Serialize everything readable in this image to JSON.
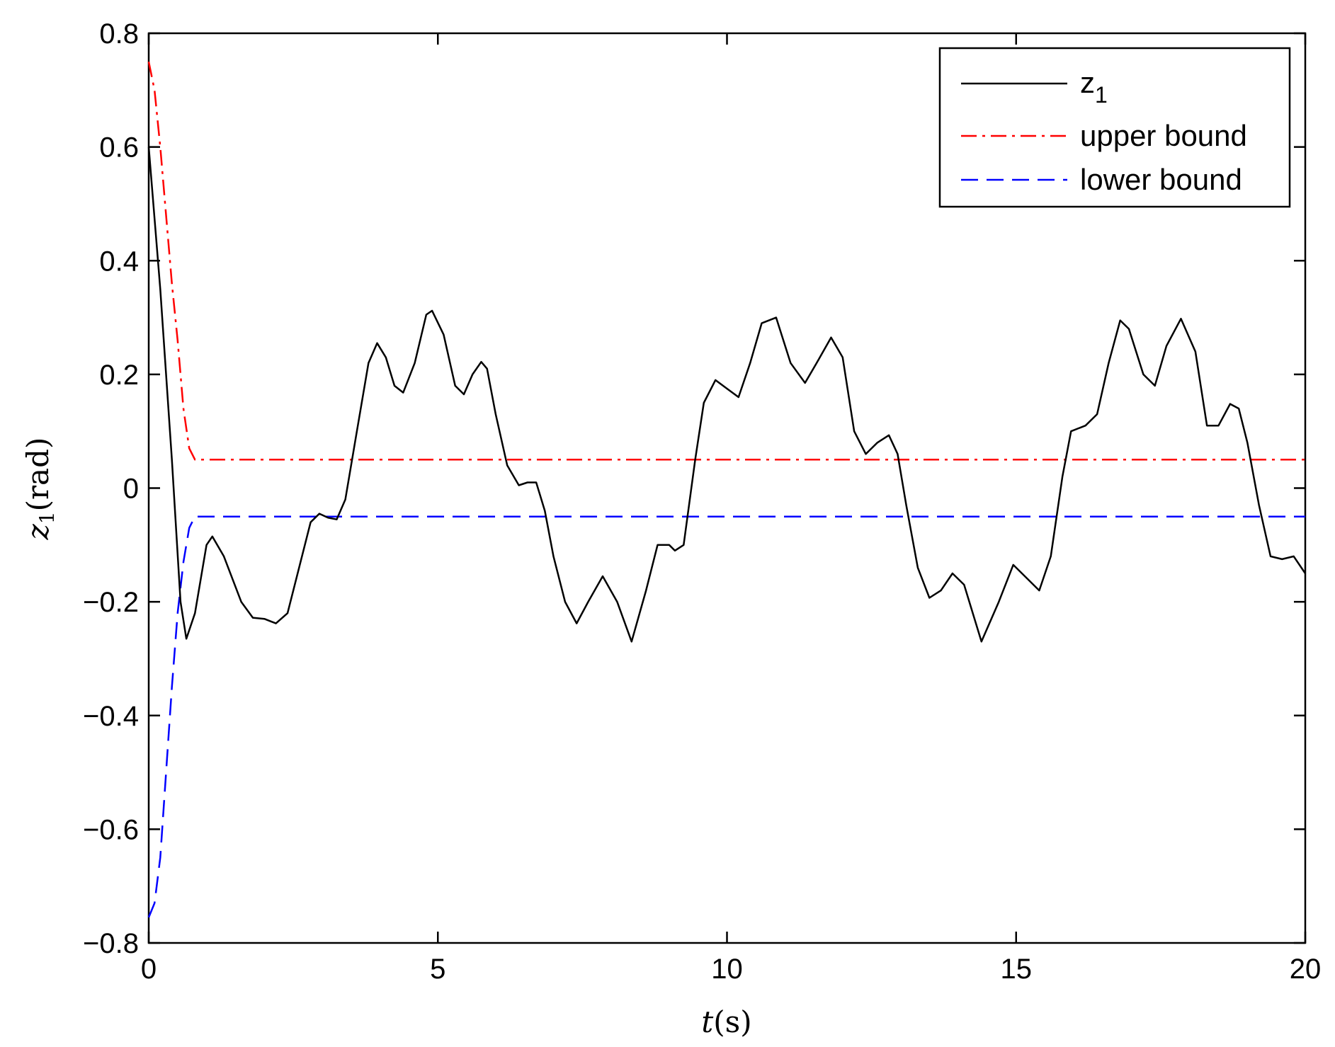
{
  "chart_data": {
    "type": "line",
    "title": "",
    "xlabel": {
      "var": "t",
      "unit": "(s)"
    },
    "ylabel": {
      "var": "z",
      "sub": "1",
      "unit": "(rad)"
    },
    "xlim": [
      0,
      20
    ],
    "ylim": [
      -0.8,
      0.8
    ],
    "xticks": [
      0,
      5,
      10,
      15,
      20
    ],
    "yticks": [
      -0.8,
      -0.6,
      -0.4,
      -0.2,
      0,
      0.2,
      0.4,
      0.6,
      0.8
    ],
    "xtick_labels": [
      "0",
      "5",
      "10",
      "15",
      "20"
    ],
    "ytick_labels": [
      "−0.8",
      "−0.6",
      "−0.4",
      "−0.2",
      "0",
      "0.2",
      "0.4",
      "0.6",
      "0.8"
    ],
    "grid": false,
    "legend_position": "top-right",
    "series": [
      {
        "name": "z",
        "name_sub": "1",
        "color": "#000000",
        "style": "solid",
        "x": [
          0,
          0.2,
          0.4,
          0.55,
          0.65,
          0.8,
          1.0,
          1.1,
          1.3,
          1.6,
          1.8,
          2.0,
          2.2,
          2.4,
          2.6,
          2.8,
          2.95,
          3.1,
          3.25,
          3.4,
          3.6,
          3.8,
          3.95,
          4.1,
          4.25,
          4.4,
          4.6,
          4.8,
          4.9,
          5.1,
          5.3,
          5.45,
          5.6,
          5.75,
          5.85,
          6.0,
          6.2,
          6.4,
          6.55,
          6.7,
          6.85,
          7.0,
          7.2,
          7.4,
          7.6,
          7.85,
          8.1,
          8.35,
          8.6,
          8.8,
          9.0,
          9.1,
          9.25,
          9.45,
          9.6,
          9.8,
          10.0,
          10.2,
          10.4,
          10.6,
          10.85,
          11.1,
          11.35,
          11.55,
          11.8,
          12.0,
          12.2,
          12.4,
          12.6,
          12.8,
          12.95,
          13.1,
          13.3,
          13.5,
          13.7,
          13.9,
          14.1,
          14.4,
          14.7,
          14.95,
          15.2,
          15.4,
          15.6,
          15.8,
          15.95,
          16.2,
          16.4,
          16.6,
          16.8,
          16.95,
          17.2,
          17.4,
          17.6,
          17.85,
          18.1,
          18.3,
          18.5,
          18.7,
          18.85,
          19.0,
          19.2,
          19.4,
          19.6,
          19.8,
          20.0
        ],
        "y": [
          0.6,
          0.35,
          0.05,
          -0.2,
          -0.265,
          -0.22,
          -0.1,
          -0.085,
          -0.12,
          -0.2,
          -0.228,
          -0.23,
          -0.238,
          -0.22,
          -0.14,
          -0.06,
          -0.045,
          -0.052,
          -0.055,
          -0.02,
          0.1,
          0.22,
          0.255,
          0.23,
          0.18,
          0.168,
          0.22,
          0.305,
          0.312,
          0.27,
          0.18,
          0.165,
          0.2,
          0.222,
          0.21,
          0.13,
          0.04,
          0.005,
          0.01,
          0.01,
          -0.04,
          -0.12,
          -0.2,
          -0.238,
          -0.2,
          -0.155,
          -0.2,
          -0.27,
          -0.18,
          -0.1,
          -0.1,
          -0.11,
          -0.1,
          0.05,
          0.15,
          0.19,
          0.175,
          0.16,
          0.22,
          0.29,
          0.3,
          0.22,
          0.185,
          0.22,
          0.265,
          0.23,
          0.1,
          0.06,
          0.08,
          0.093,
          0.06,
          -0.03,
          -0.14,
          -0.193,
          -0.18,
          -0.15,
          -0.17,
          -0.27,
          -0.2,
          -0.135,
          -0.16,
          -0.18,
          -0.12,
          0.02,
          0.1,
          0.11,
          0.13,
          0.22,
          0.295,
          0.28,
          0.2,
          0.18,
          0.25,
          0.298,
          0.24,
          0.11,
          0.11,
          0.148,
          0.14,
          0.08,
          -0.03,
          -0.12,
          -0.125,
          -0.12,
          -0.15
        ]
      },
      {
        "name": "upper bound",
        "color": "#ff0000",
        "style": "dashdot",
        "x": [
          0,
          0.1,
          0.2,
          0.3,
          0.4,
          0.5,
          0.6,
          0.7,
          0.8,
          1.0,
          20
        ],
        "y": [
          0.75,
          0.7,
          0.6,
          0.48,
          0.36,
          0.26,
          0.14,
          0.07,
          0.05,
          0.05,
          0.05
        ]
      },
      {
        "name": "lower bound",
        "color": "#0000ff",
        "style": "dashed",
        "x": [
          0,
          0.1,
          0.2,
          0.3,
          0.4,
          0.5,
          0.6,
          0.7,
          0.8,
          1.0,
          20
        ],
        "y": [
          -0.755,
          -0.73,
          -0.65,
          -0.5,
          -0.35,
          -0.22,
          -0.13,
          -0.07,
          -0.05,
          -0.05,
          -0.05
        ]
      }
    ]
  }
}
